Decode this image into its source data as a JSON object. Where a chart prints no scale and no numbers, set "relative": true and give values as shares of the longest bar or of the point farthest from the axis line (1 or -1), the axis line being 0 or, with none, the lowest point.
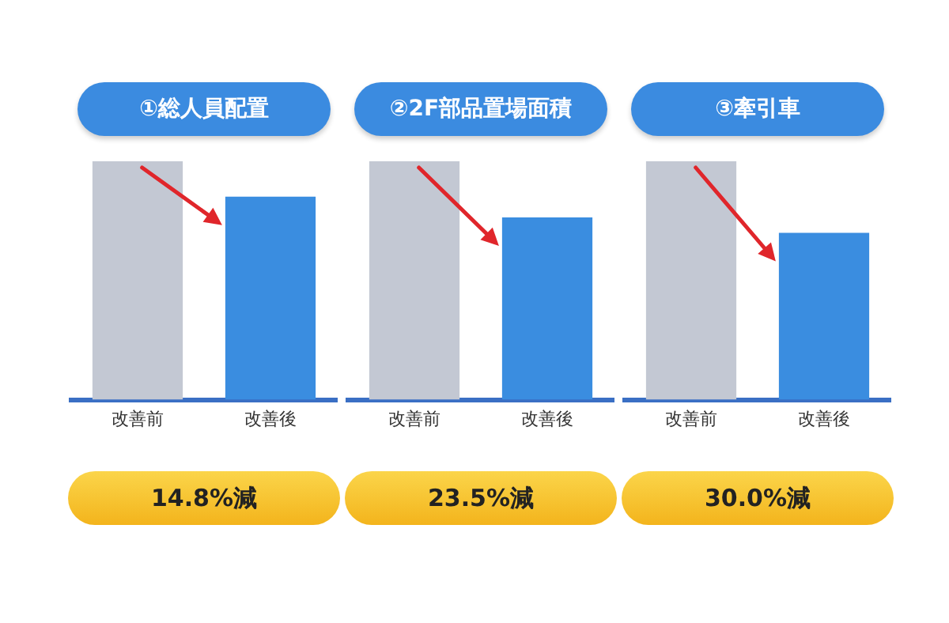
{
  "chart_data": [
    {
      "type": "bar",
      "title": "①総人員配置",
      "categories": [
        "改善前",
        "改善後"
      ],
      "values": [
        1,
        0.852
      ],
      "colors": [
        "#c3c8d3",
        "#3a8de0"
      ],
      "relative": true,
      "annotations": [
        "14.8%減"
      ]
    },
    {
      "type": "bar",
      "title": "②2F部品置場面積",
      "categories": [
        "改善前",
        "改善後"
      ],
      "values": [
        1,
        0.765
      ],
      "colors": [
        "#c3c8d3",
        "#3a8de0"
      ],
      "relative": true,
      "annotations": [
        "23.5%減"
      ]
    },
    {
      "type": "bar",
      "title": "③牽引車",
      "categories": [
        "改善前",
        "改善後"
      ],
      "values": [
        1,
        0.7
      ],
      "colors": [
        "#c3c8d3",
        "#3a8de0"
      ],
      "relative": true,
      "annotations": [
        "30.0%減"
      ]
    }
  ]
}
